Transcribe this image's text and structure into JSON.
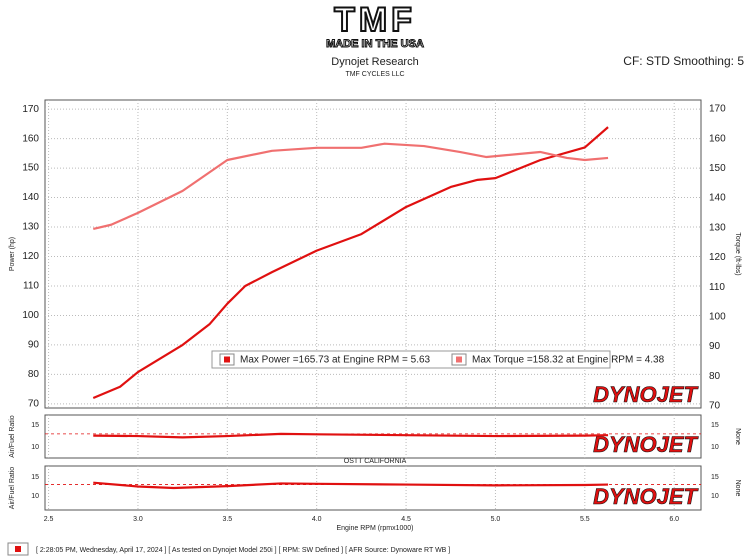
{
  "header": {
    "logo": "TMF",
    "tagline": "MADE IN THE USA",
    "settings": "CF: STD  Smoothing: 5",
    "note": "OSTT CALIFORNIA",
    "watermark": "DYNOJET"
  },
  "footer": "[ 2:28:05 PM, Wednesday, April 17, 2024 ] [ As tested on Dynojet Model 250i ] [ RPM: SW Defined ] [ AFR Source: Dynoware RT WB ]",
  "chart_data": [
    {
      "type": "line",
      "title": "Dynojet Research",
      "subtitle": "TMF CYCLES LLC",
      "ylabel": "Power (hp)",
      "y2label": "Torque (ft-lbs)",
      "xlim": [
        2.48,
        6.15
      ],
      "ylim": [
        68.6,
        173.1
      ],
      "y2lim": [
        69.3,
        173.0
      ],
      "yticks": [
        70,
        80,
        90,
        100,
        110,
        120,
        130,
        140,
        150,
        160,
        170
      ],
      "y2ticks": [
        70,
        80,
        90,
        100,
        110,
        120,
        130,
        140,
        150,
        160,
        170
      ],
      "grid": true,
      "series": [
        {
          "name": "Max Power =165.73 at Engine RPM = 5.63",
          "color": "#e01010",
          "x": [
            2.75,
            2.9,
            3.0,
            3.25,
            3.4,
            3.5,
            3.6,
            3.75,
            4.0,
            4.25,
            4.5,
            4.75,
            4.9,
            5.0,
            5.25,
            5.5,
            5.63
          ],
          "values": [
            72,
            75.8,
            80.8,
            90,
            97,
            104,
            110,
            114.7,
            122,
            127.6,
            136.8,
            143.6,
            146,
            146.6,
            152.7,
            157,
            163.9
          ]
        },
        {
          "name": "Max Torque =158.32 at Engine RPM = 4.38",
          "color": "#f07070",
          "axis": "y2",
          "x": [
            2.75,
            2.85,
            3.0,
            3.25,
            3.5,
            3.75,
            4.0,
            4.25,
            4.38,
            4.6,
            4.8,
            4.95,
            5.25,
            5.4,
            5.5,
            5.63
          ],
          "values": [
            129.6,
            131,
            135,
            142.4,
            152.8,
            155.9,
            156.9,
            156.9,
            158.3,
            157.5,
            155.5,
            153.8,
            155.5,
            153.5,
            152.8,
            153.5
          ]
        }
      ]
    },
    {
      "type": "line",
      "ylabel": "Air/Fuel Ratio",
      "y2label": "None",
      "xlim": [
        2.48,
        6.15
      ],
      "ylim": [
        7.5,
        17.3
      ],
      "yticks": [
        10,
        15
      ],
      "reference": 13,
      "series": [
        {
          "color": "#e01010",
          "x": [
            2.75,
            3.0,
            3.25,
            3.5,
            3.8,
            4.0,
            4.5,
            5.0,
            5.5,
            5.63
          ],
          "values": [
            12.6,
            12.5,
            12.2,
            12.5,
            13,
            12.9,
            12.7,
            12.5,
            12.6,
            12.7
          ]
        }
      ]
    },
    {
      "type": "line",
      "ylabel": "Air/Fuel Ratio",
      "y2label": "None",
      "xlabel": "Engine RPM (rpmx1000)",
      "xlim": [
        2.48,
        6.15
      ],
      "ylim": [
        6.3,
        17.9
      ],
      "yticks": [
        10,
        15
      ],
      "reference": 13,
      "xticks": [
        {
          "value": 2.5,
          "label": "2.5"
        },
        {
          "value": 3,
          "label": "3.0"
        },
        {
          "value": 3.5,
          "label": "3.5"
        },
        {
          "value": 4,
          "label": "4.0"
        },
        {
          "value": 4.5,
          "label": "4.5"
        },
        {
          "value": 5,
          "label": "5.0"
        },
        {
          "value": 5.5,
          "label": "5.5"
        },
        {
          "value": 6,
          "label": "6.0"
        }
      ],
      "series": [
        {
          "color": "#e01010",
          "x": [
            2.75,
            3.0,
            3.2,
            3.5,
            3.8,
            4.0,
            4.5,
            5.0,
            5.5,
            5.63
          ],
          "values": [
            13.5,
            12.5,
            12.1,
            12.6,
            13.3,
            13.2,
            13,
            12.8,
            12.9,
            13
          ]
        }
      ]
    }
  ]
}
